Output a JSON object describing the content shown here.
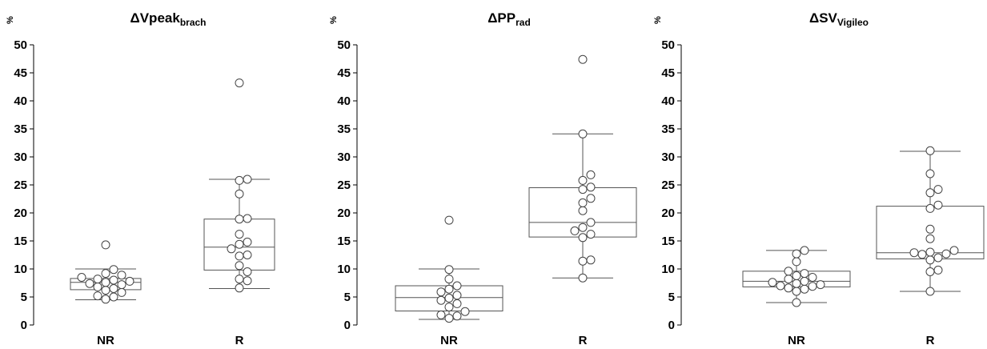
{
  "chart_data": [
    {
      "type": "boxplot",
      "title_main": "ΔVpeak",
      "title_sub": "brach",
      "ylabel": "%",
      "ylim": [
        0,
        50
      ],
      "yticks": [
        0,
        5,
        10,
        15,
        20,
        25,
        30,
        35,
        40,
        45,
        50
      ],
      "categories": [
        "NR",
        "R"
      ],
      "boxes": [
        {
          "category": "NR",
          "whisker_low": 4.5,
          "q1": 6.3,
          "median": 7.6,
          "q3": 8.3,
          "whisker_high": 10.0,
          "points": [
            4.6,
            5.0,
            5.2,
            5.8,
            6.2,
            6.5,
            6.8,
            7.2,
            7.4,
            7.6,
            7.8,
            8.0,
            8.2,
            8.5,
            8.9,
            9.2,
            9.9,
            14.3
          ]
        },
        {
          "category": "R",
          "whisker_low": 6.5,
          "q1": 9.8,
          "median": 13.9,
          "q3": 18.9,
          "whisker_high": 26.0,
          "points": [
            6.6,
            7.9,
            8.2,
            9.5,
            10.6,
            12.3,
            12.5,
            13.6,
            14.4,
            14.8,
            16.2,
            18.9,
            19.0,
            23.4,
            25.8,
            26.0,
            43.2
          ]
        }
      ]
    },
    {
      "type": "boxplot",
      "title_main": "ΔPP",
      "title_sub": "rad",
      "ylabel": "%",
      "ylim": [
        0,
        50
      ],
      "yticks": [
        0,
        5,
        10,
        15,
        20,
        25,
        30,
        35,
        40,
        45,
        50
      ],
      "categories": [
        "NR",
        "R"
      ],
      "boxes": [
        {
          "category": "NR",
          "whisker_low": 1.0,
          "q1": 2.5,
          "median": 4.9,
          "q3": 7.0,
          "whisker_high": 10.0,
          "points": [
            1.2,
            1.6,
            1.8,
            2.4,
            3.2,
            3.8,
            4.4,
            4.8,
            5.3,
            5.9,
            6.4,
            7.0,
            8.2,
            9.9,
            18.7
          ]
        },
        {
          "category": "R",
          "whisker_low": 8.4,
          "q1": 15.7,
          "median": 18.3,
          "q3": 24.5,
          "whisker_high": 34.1,
          "points": [
            8.4,
            11.4,
            11.6,
            15.6,
            16.2,
            16.8,
            17.4,
            18.3,
            20.4,
            21.8,
            22.6,
            24.2,
            24.6,
            25.8,
            26.8,
            34.1,
            47.4
          ]
        }
      ]
    },
    {
      "type": "boxplot",
      "title_main": "ΔSV",
      "title_sub": "Vigileo",
      "ylabel": "%",
      "ylim": [
        0,
        50
      ],
      "yticks": [
        0,
        5,
        10,
        15,
        20,
        25,
        30,
        35,
        40,
        45,
        50
      ],
      "categories": [
        "NR",
        "R"
      ],
      "boxes": [
        {
          "category": "NR",
          "whisker_low": 4.0,
          "q1": 6.8,
          "median": 7.8,
          "q3": 9.6,
          "whisker_high": 13.3,
          "points": [
            4.0,
            6.0,
            6.4,
            6.6,
            6.9,
            7.0,
            7.2,
            7.4,
            7.6,
            7.8,
            8.2,
            8.5,
            8.8,
            9.2,
            9.6,
            11.3,
            12.7,
            13.3
          ]
        },
        {
          "category": "R",
          "whisker_low": 6.0,
          "q1": 11.8,
          "median": 12.9,
          "q3": 21.2,
          "whisker_high": 31.0,
          "points": [
            6.0,
            9.5,
            9.8,
            11.6,
            12.0,
            12.6,
            12.7,
            12.9,
            13.0,
            13.3,
            15.4,
            17.1,
            20.8,
            21.4,
            23.6,
            24.2,
            27.0,
            31.1
          ]
        }
      ]
    }
  ]
}
